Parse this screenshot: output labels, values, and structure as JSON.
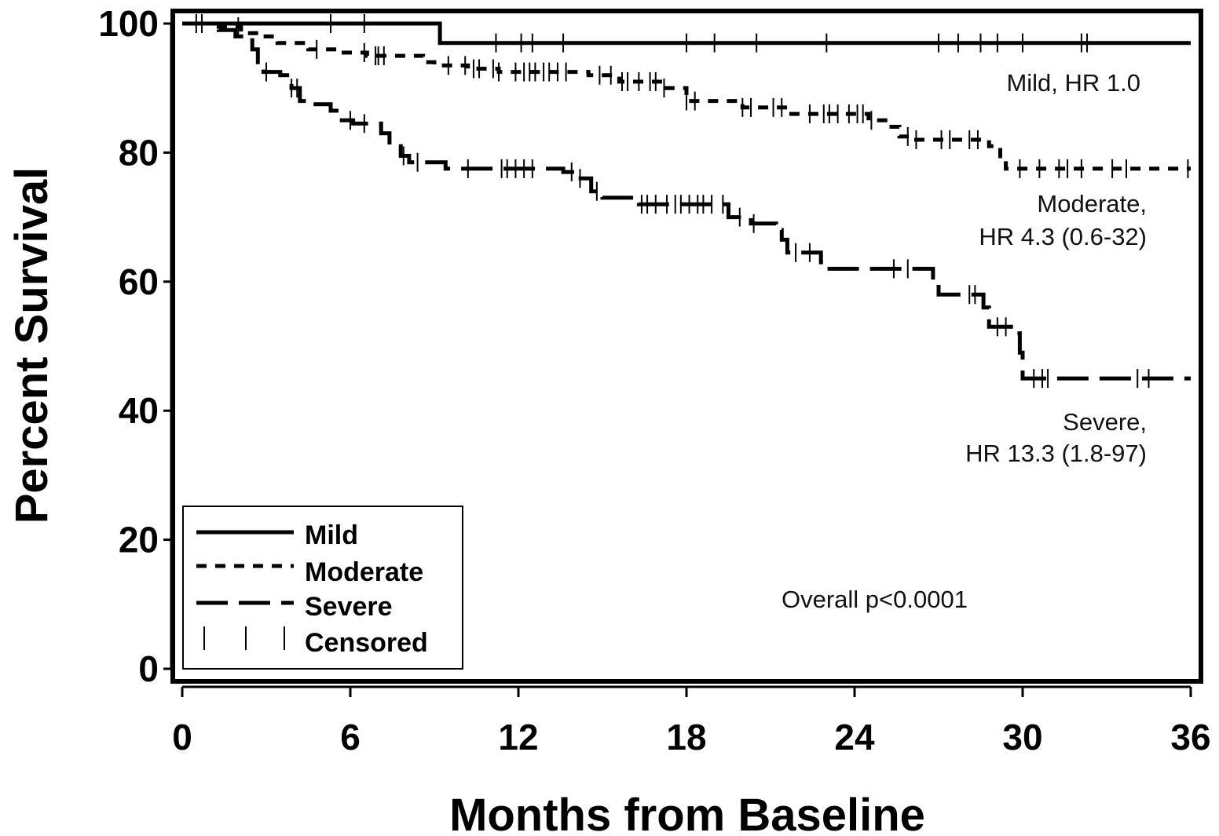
{
  "chart_data": {
    "type": "line",
    "title": "",
    "xlabel": "Months from Baseline",
    "ylabel": "Percent Survival",
    "xlim": [
      0,
      36
    ],
    "ylim": [
      0,
      100
    ],
    "x_ticks": [
      0,
      6,
      12,
      18,
      24,
      30,
      36
    ],
    "y_ticks": [
      0,
      20,
      40,
      60,
      80,
      100
    ],
    "grid": false,
    "legend_position": "bottom-left",
    "legend": [
      "Mild",
      "Moderate",
      "Severe",
      "Censored"
    ],
    "annotations": {
      "mild": [
        "Mild, HR 1.0"
      ],
      "moderate": [
        "Moderate,",
        "HR 4.3 (0.6-32)"
      ],
      "severe": [
        "Severe,",
        "HR 13.3 (1.8-97)"
      ],
      "pvalue": "Overall p<0.0001"
    },
    "series": [
      {
        "name": "Mild",
        "line_style": "solid",
        "steps": [
          [
            0,
            100
          ],
          [
            9.2,
            97
          ],
          [
            36,
            97
          ]
        ],
        "censored_months": [
          0.7,
          5.3,
          6.5,
          11.2,
          12.1,
          12.5,
          13.6,
          18,
          19,
          20.5,
          23,
          27,
          27.7,
          28.5,
          29.1,
          30,
          32.1,
          32.3
        ]
      },
      {
        "name": "Moderate",
        "line_style": "short-dash",
        "steps": [
          [
            0,
            100
          ],
          [
            1.1,
            99.5
          ],
          [
            2.1,
            98.5
          ],
          [
            2.9,
            98
          ],
          [
            3.4,
            97
          ],
          [
            4.5,
            96
          ],
          [
            5.6,
            95.5
          ],
          [
            6.6,
            95
          ],
          [
            8.6,
            94
          ],
          [
            9,
            93.5
          ],
          [
            10.2,
            93
          ],
          [
            11.3,
            92.5
          ],
          [
            13.2,
            92.5
          ],
          [
            14.5,
            92
          ],
          [
            15.6,
            91
          ],
          [
            17.2,
            90
          ],
          [
            18,
            88
          ],
          [
            20,
            87
          ],
          [
            21.6,
            86
          ],
          [
            24.5,
            85
          ],
          [
            25.1,
            84
          ],
          [
            25.6,
            82.5
          ],
          [
            26.2,
            82
          ],
          [
            28.8,
            81
          ],
          [
            29.2,
            79
          ],
          [
            29.4,
            77.5
          ],
          [
            36,
            77.5
          ]
        ],
        "censored_months": [
          2,
          4.8,
          6.5,
          6.9,
          7,
          7.2,
          9.5,
          10.1,
          10.4,
          10.6,
          11.1,
          11.3,
          11.9,
          12.2,
          12.4,
          12.6,
          12.9,
          13.1,
          13.4,
          13.7,
          14.9,
          15.3,
          15.7,
          15.9,
          16.3,
          16.7,
          16.9,
          17.2,
          18,
          18.3,
          20,
          20.3,
          21.1,
          21.4,
          22.4,
          22.9,
          23.1,
          23.4,
          23.8,
          24.1,
          24.3,
          24.6,
          25.9,
          26.2,
          27.1,
          27.4,
          28.1,
          28.4,
          29.9,
          30.6,
          31.3,
          31.6,
          32.1,
          33.2,
          33.7,
          35.9
        ]
      },
      {
        "name": "Severe",
        "line_style": "long-dash",
        "steps": [
          [
            0,
            100
          ],
          [
            1.3,
            99
          ],
          [
            1.9,
            98
          ],
          [
            2.5,
            96
          ],
          [
            2.7,
            94
          ],
          [
            2.9,
            92.5
          ],
          [
            3.5,
            92
          ],
          [
            3.9,
            90
          ],
          [
            4.2,
            88
          ],
          [
            4.6,
            87.5
          ],
          [
            5.3,
            86.5
          ],
          [
            5.6,
            85
          ],
          [
            6.1,
            84.5
          ],
          [
            7.1,
            83
          ],
          [
            7.4,
            81
          ],
          [
            7.8,
            79.5
          ],
          [
            8.1,
            78.5
          ],
          [
            9.4,
            77.5
          ],
          [
            13.6,
            77
          ],
          [
            14.1,
            76
          ],
          [
            14.6,
            74
          ],
          [
            15,
            73
          ],
          [
            16.3,
            72
          ],
          [
            19.5,
            70
          ],
          [
            20.3,
            69
          ],
          [
            21.2,
            68
          ],
          [
            21.4,
            66.5
          ],
          [
            21.6,
            64.5
          ],
          [
            22.8,
            63
          ],
          [
            23,
            62
          ],
          [
            26.8,
            60
          ],
          [
            27,
            58
          ],
          [
            28.6,
            56
          ],
          [
            28.8,
            53
          ],
          [
            29.8,
            52
          ],
          [
            29.9,
            49
          ],
          [
            30,
            45
          ],
          [
            36,
            45
          ]
        ],
        "censored_months": [
          0.5,
          3,
          3.9,
          4.1,
          6,
          6.5,
          7.9,
          8.4,
          10.2,
          11.4,
          11.6,
          11.9,
          12.2,
          12.5,
          13.9,
          14.2,
          14.8,
          16.4,
          16.6,
          16.9,
          17.3,
          17.6,
          17.8,
          18.1,
          18.4,
          18.6,
          18.9,
          19.3,
          19.9,
          20.4,
          21.9,
          22.4,
          25.4,
          25.9,
          28.1,
          28.3,
          29.1,
          29.4,
          30.4,
          30.7,
          30.9,
          34.1,
          34.5
        ]
      }
    ]
  }
}
